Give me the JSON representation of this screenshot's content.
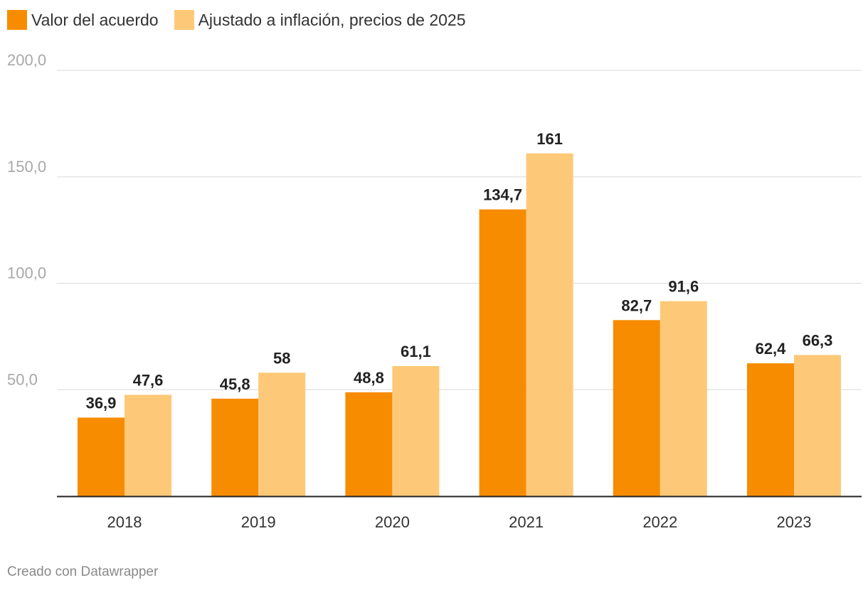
{
  "legend": {
    "items": [
      {
        "label": "Valor del acuerdo",
        "color": "#f78c01"
      },
      {
        "label": "Ajustado a inflación, precios de 2025",
        "color": "#fdc978"
      }
    ]
  },
  "footer": {
    "credit": "Creado con Datawrapper"
  },
  "chart_data": {
    "type": "bar",
    "title": "",
    "xlabel": "",
    "ylabel": "",
    "categories": [
      "2018",
      "2019",
      "2020",
      "2021",
      "2022",
      "2023"
    ],
    "series": [
      {
        "name": "Valor del acuerdo",
        "color": "#f78c01",
        "values": [
          36.9,
          45.8,
          48.8,
          134.7,
          82.7,
          62.4
        ],
        "labels": [
          "36,9",
          "45,8",
          "48,8",
          "134,7",
          "82,7",
          "62,4"
        ]
      },
      {
        "name": "Ajustado a inflación, precios de 2025",
        "color": "#fdc978",
        "values": [
          47.6,
          58,
          61.1,
          161,
          91.6,
          66.3
        ],
        "labels": [
          "47,6",
          "58",
          "61,1",
          "161",
          "91,6",
          "66,3"
        ]
      }
    ],
    "ylim": [
      0,
      200
    ],
    "yticks": [
      50,
      100,
      150,
      200
    ],
    "ytick_labels": [
      "50,0",
      "100,0",
      "150,0",
      "200,0"
    ],
    "grid": true,
    "legend_position": "top-left"
  }
}
